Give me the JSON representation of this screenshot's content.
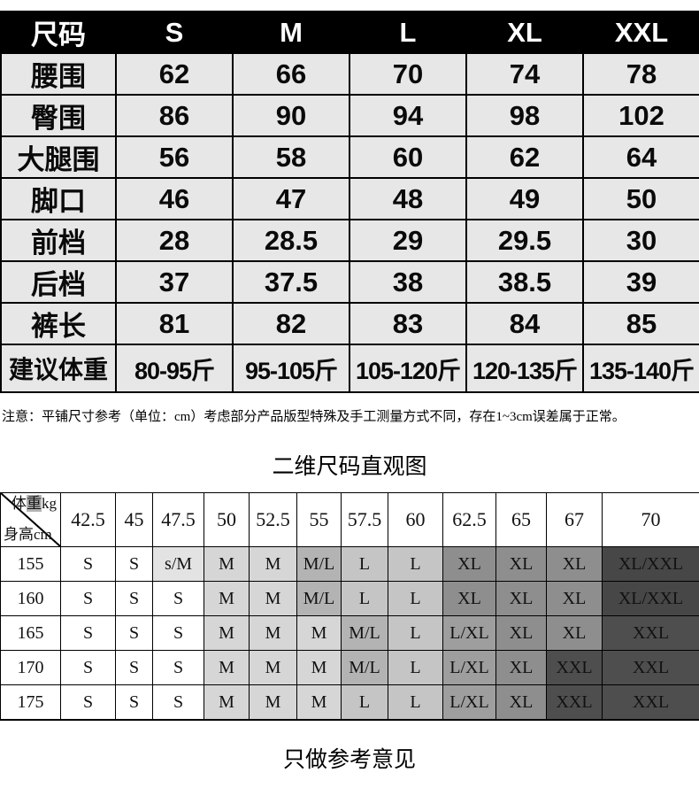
{
  "size_table": {
    "header": [
      "尺码",
      "S",
      "M",
      "L",
      "XL",
      "XXL"
    ],
    "rows": [
      {
        "label": "腰围",
        "values": [
          "62",
          "66",
          "70",
          "74",
          "78"
        ]
      },
      {
        "label": "臀围",
        "values": [
          "86",
          "90",
          "94",
          "98",
          "102"
        ]
      },
      {
        "label": "大腿围",
        "values": [
          "56",
          "58",
          "60",
          "62",
          "64"
        ]
      },
      {
        "label": "脚口",
        "values": [
          "46",
          "47",
          "48",
          "49",
          "50"
        ]
      },
      {
        "label": "前档",
        "values": [
          "28",
          "28.5",
          "29",
          "29.5",
          "30"
        ]
      },
      {
        "label": "后档",
        "values": [
          "37",
          "37.5",
          "38",
          "38.5",
          "39"
        ]
      },
      {
        "label": "裤长",
        "values": [
          "81",
          "82",
          "83",
          "84",
          "85"
        ]
      },
      {
        "label": "建议体重",
        "values": [
          "80-95斤",
          "95-105斤",
          "105-120斤",
          "120-135斤",
          "135-140斤"
        ]
      }
    ]
  },
  "note": "注意：平铺尺寸参考（单位：cm）考虑部分产品版型特殊及手工测量方式不同，存在1~3cm误差属于正常。",
  "matrix_title": "二维尺码直观图",
  "size_matrix": {
    "corner": {
      "weight_pre": "体",
      "weight_hl": "重",
      "weight_post": "kg",
      "height_label": "身高cm"
    },
    "weight_cols": [
      "42.5",
      "45",
      "47.5",
      "50",
      "52.5",
      "55",
      "57.5",
      "60",
      "62.5",
      "65",
      "67",
      "70"
    ],
    "rows": [
      {
        "height": "155",
        "cells": [
          "S",
          "S",
          "s/M",
          "M",
          "M",
          "M/L",
          "L",
          "L",
          "XL",
          "XL",
          "XL",
          "XL/XXL"
        ]
      },
      {
        "height": "160",
        "cells": [
          "S",
          "S",
          "S",
          "M",
          "M",
          "M/L",
          "L",
          "L",
          "XL",
          "XL",
          "XL",
          "XL/XXL"
        ]
      },
      {
        "height": "165",
        "cells": [
          "S",
          "S",
          "S",
          "M",
          "M",
          "M",
          "M/L",
          "L",
          "L/XL",
          "XL",
          "XL",
          "XXL"
        ]
      },
      {
        "height": "170",
        "cells": [
          "S",
          "S",
          "S",
          "M",
          "M",
          "M",
          "M/L",
          "L",
          "L/XL",
          "XL",
          "XXL",
          "XXL"
        ]
      },
      {
        "height": "175",
        "cells": [
          "S",
          "S",
          "S",
          "M",
          "M",
          "M",
          "L",
          "L",
          "L/XL",
          "XL",
          "XXL",
          "XXL"
        ]
      }
    ],
    "shade_map": {
      "S": "#ffffff",
      "s/M": "#e3e3e3",
      "M": "#d6d6d6",
      "M/L": "#b3b3b3",
      "L": "#c5c5c5",
      "L/XL": "#9e9e9e",
      "XL": "#8e8e8e",
      "XXL": "#4e4e4e",
      "XL/XXL": "#474747"
    }
  },
  "footer": "只做参考意见",
  "colors": {
    "table_header_bg": "#000000",
    "table_header_text": "#ffffff",
    "cell_bg": "#e7e7e7",
    "border": "#000000"
  }
}
